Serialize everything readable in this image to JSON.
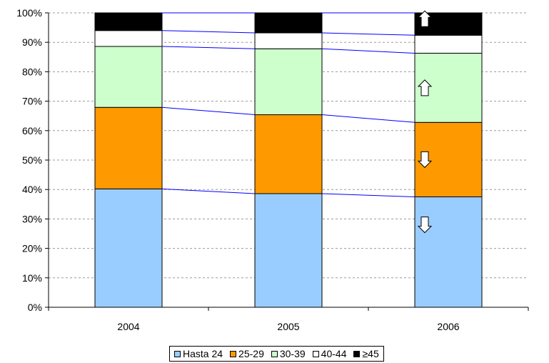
{
  "chart_data": {
    "type": "bar",
    "stacked": true,
    "categories": [
      "2004",
      "2005",
      "2006"
    ],
    "series": [
      {
        "name": "Hasta 24",
        "values": [
          40.2,
          38.6,
          37.5
        ],
        "color": "#99CCFF"
      },
      {
        "name": "25-29",
        "values": [
          27.7,
          26.8,
          25.3
        ],
        "color": "#FF9900"
      },
      {
        "name": "30-39",
        "values": [
          20.7,
          22.4,
          23.5
        ],
        "color": "#CCFFCC"
      },
      {
        "name": "40-44",
        "values": [
          5.4,
          5.4,
          6.1
        ],
        "color": "#FFFFFF"
      },
      {
        "name": "≥45",
        "values": [
          6.0,
          6.8,
          7.6
        ],
        "color": "#000000"
      }
    ],
    "ylim": [
      0,
      100
    ],
    "y_ticks": [
      "0%",
      "10%",
      "20%",
      "30%",
      "40%",
      "50%",
      "60%",
      "70%",
      "80%",
      "90%",
      "100%"
    ],
    "grid": true,
    "legend_position": "bottom",
    "trend_line_color": "#0000FF",
    "arrows": [
      {
        "series": "≥45",
        "direction": "up"
      },
      {
        "series": "30-39",
        "direction": "up"
      },
      {
        "series": "25-29",
        "direction": "down"
      },
      {
        "series": "Hasta 24",
        "direction": "down"
      }
    ]
  }
}
